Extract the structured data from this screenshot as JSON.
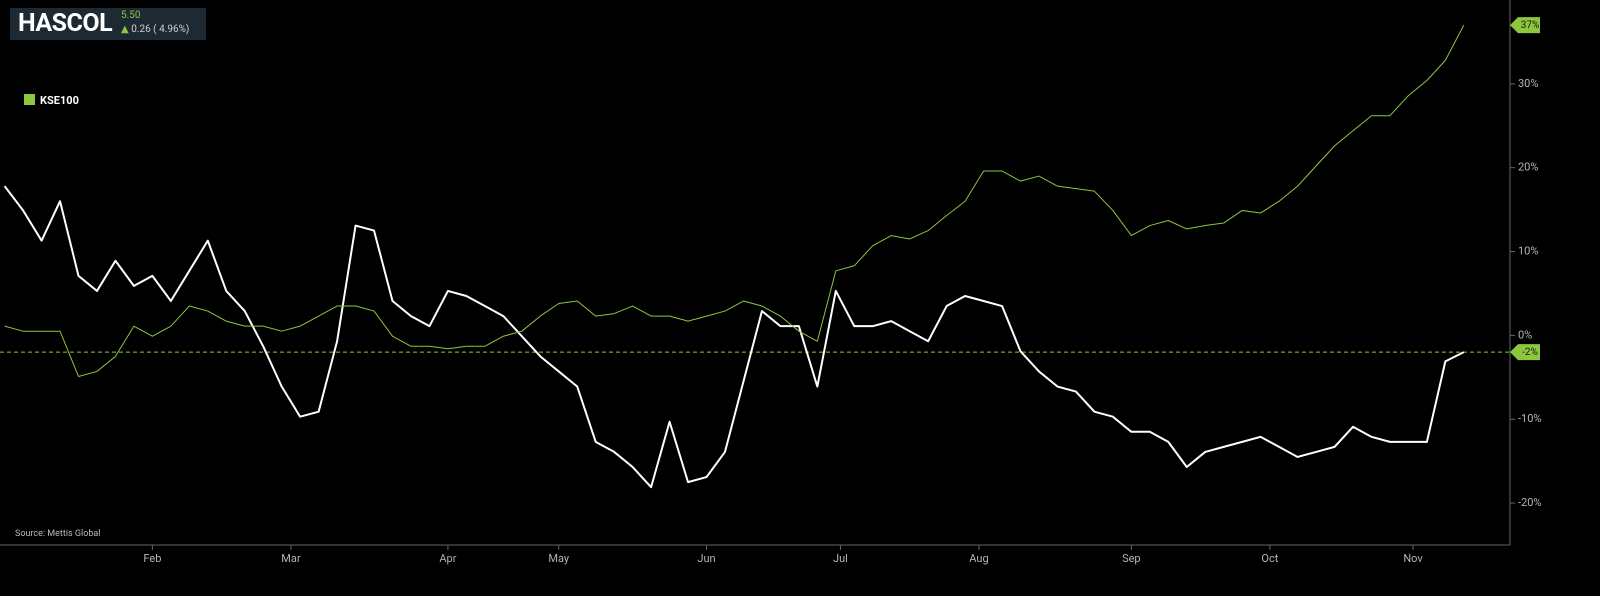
{
  "header": {
    "symbol": "HASCOL",
    "price": "5.50",
    "change": "0.26 ( 4.96%)"
  },
  "source": "Source: Mettis Global",
  "chart_data": {
    "type": "line",
    "x": [
      0,
      4,
      8,
      12,
      16,
      20,
      24,
      28,
      32,
      36,
      40,
      44,
      48,
      52,
      56,
      60,
      64,
      68,
      72,
      76,
      80,
      84,
      88,
      92,
      96,
      100,
      104,
      108,
      112,
      116,
      120,
      124,
      128,
      132,
      136,
      140,
      144,
      148,
      152,
      156,
      160,
      164,
      168,
      172,
      176,
      180,
      184,
      188,
      192,
      196,
      200,
      204,
      208,
      212,
      216,
      220,
      224,
      228,
      232,
      236,
      240,
      244,
      248,
      252,
      256,
      260,
      264,
      268,
      272,
      276,
      280,
      284,
      288,
      292,
      296,
      300,
      304,
      308,
      312,
      316
    ],
    "series": [
      {
        "color": "#ffffff",
        "last_label": "-2%",
        "values": [
          17.8,
          14.9,
          11.3,
          16,
          7.1,
          5.3,
          8.9,
          5.9,
          7.1,
          4.1,
          7.7,
          11.3,
          5.3,
          2.9,
          -1.3,
          -6.1,
          -9.7,
          -9.1,
          -0.7,
          13.1,
          12.5,
          4.1,
          2.3,
          1.1,
          5.3,
          4.7,
          3.5,
          2.3,
          -0.1,
          -2.5,
          -4.3,
          -6.1,
          -12.7,
          -13.9,
          -15.7,
          -18.1,
          -10.3,
          -17.5,
          -16.9,
          -13.9,
          -5.5,
          2.9,
          1.1,
          1.1,
          -6.1,
          5.3,
          1.1,
          1.1,
          1.7,
          0.5,
          -0.7,
          3.5,
          4.7,
          4.1,
          3.5,
          -1.9,
          -4.3,
          -6.1,
          -6.7,
          -9.1,
          -9.7,
          -11.5,
          -11.5,
          -12.7,
          -15.7,
          -13.9,
          -13.3,
          -12.7,
          -12.1,
          -13.3,
          -14.5,
          -13.9,
          -13.3,
          -10.9,
          -12.1,
          -12.7,
          -12.7,
          -12.7,
          -3.1,
          -2
        ]
      },
      {
        "name": "KSE100",
        "color": "#8dc63f",
        "last_label": "37%",
        "values": [
          1.1,
          0.5,
          0.5,
          0.5,
          -4.9,
          -4.3,
          -2.5,
          1.1,
          -0.1,
          1.1,
          3.5,
          2.9,
          1.7,
          1.1,
          1.1,
          0.5,
          1.1,
          2.3,
          3.5,
          3.5,
          2.9,
          -0.1,
          -1.3,
          -1.3,
          -1.6,
          -1.3,
          -1.3,
          -0.1,
          0.5,
          2.3,
          3.8,
          4.1,
          2.3,
          2.6,
          3.5,
          2.3,
          2.3,
          1.7,
          2.3,
          2.9,
          4.1,
          3.5,
          2.3,
          0.5,
          -0.7,
          7.7,
          8.3,
          10.7,
          11.9,
          11.5,
          12.5,
          14.3,
          16,
          19.6,
          19.6,
          18.4,
          19,
          17.8,
          17.5,
          17.2,
          14.9,
          11.9,
          13.1,
          13.7,
          12.7,
          13.1,
          13.4,
          14.9,
          14.6,
          16,
          17.8,
          20.2,
          22.6,
          24.4,
          26.2,
          26.2,
          28.6,
          30.4,
          32.8,
          37
        ]
      }
    ],
    "xlim": [
      -1,
      326
    ],
    "xticks": [
      {
        "value": 32,
        "label": "Feb"
      },
      {
        "value": 62,
        "label": "Mar"
      },
      {
        "value": 96,
        "label": "Apr"
      },
      {
        "value": 120,
        "label": "May"
      },
      {
        "value": 152,
        "label": "Jun"
      },
      {
        "value": 181,
        "label": "Jul"
      },
      {
        "value": 211,
        "label": "Aug"
      },
      {
        "value": 244,
        "label": "Sep"
      },
      {
        "value": 274,
        "label": "Oct"
      },
      {
        "value": 305,
        "label": "Nov"
      }
    ],
    "ylim": [
      -25,
      40
    ],
    "yticks": [
      {
        "value": -20,
        "label": "-20%"
      },
      {
        "value": -10,
        "label": "-10%"
      },
      {
        "value": 0,
        "label": "0%"
      },
      {
        "value": 10,
        "label": "10%"
      },
      {
        "value": 20,
        "label": "20%"
      },
      {
        "value": 30,
        "label": "30%"
      }
    ]
  }
}
